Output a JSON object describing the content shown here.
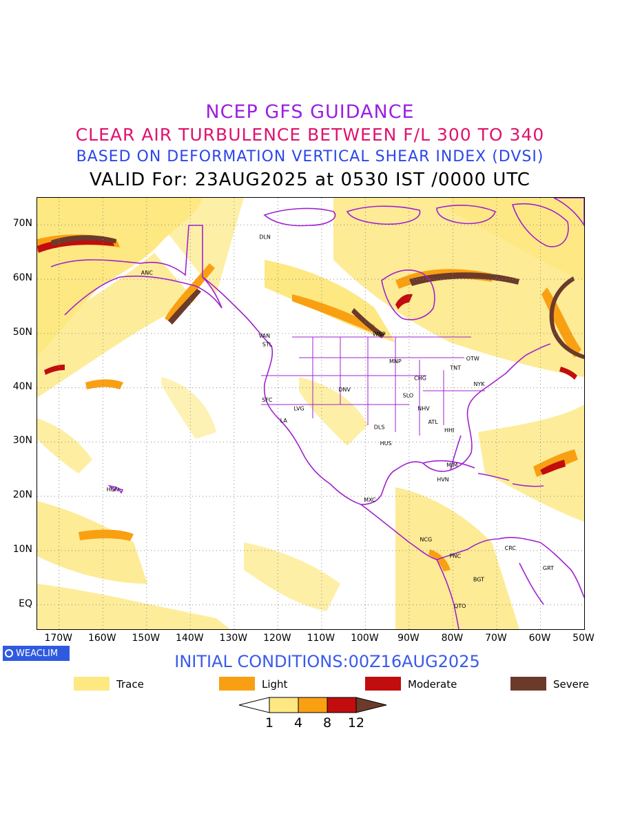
{
  "header": {
    "line1": "NCEP GFS GUIDANCE",
    "line2": "CLEAR AIR TURBULENCE BETWEEN F/L 300 TO 340",
    "line3": "BASED ON DEFORMATION VERTICAL SHEAR INDEX (DVSI)",
    "line4": "VALID For: 23AUG2025 at 0530 IST /0000 UTC"
  },
  "axes": {
    "lat_labels": [
      "70N",
      "60N",
      "50N",
      "40N",
      "30N",
      "20N",
      "10N",
      "EQ"
    ],
    "lon_labels": [
      "170W",
      "160W",
      "150W",
      "140W",
      "130W",
      "120W",
      "110W",
      "100W",
      "90W",
      "80W",
      "70W",
      "60W",
      "50W"
    ]
  },
  "cities": [
    {
      "name": "DLN",
      "lon": -123,
      "lat": 67.8
    },
    {
      "name": "ANC",
      "lon": -150,
      "lat": 61.2
    },
    {
      "name": "VAN",
      "lon": -123.1,
      "lat": 49.6
    },
    {
      "name": "STL",
      "lon": -122.3,
      "lat": 48.0
    },
    {
      "name": "WNP",
      "lon": -97.1,
      "lat": 49.9
    },
    {
      "name": "MNP",
      "lon": -93.3,
      "lat": 44.9
    },
    {
      "name": "TNT",
      "lon": -79.4,
      "lat": 43.7
    },
    {
      "name": "OTW",
      "lon": -75.7,
      "lat": 45.4
    },
    {
      "name": "CHG",
      "lon": -87.6,
      "lat": 41.8
    },
    {
      "name": "NYK",
      "lon": -74.0,
      "lat": 40.7
    },
    {
      "name": "DNV",
      "lon": -104.9,
      "lat": 39.7
    },
    {
      "name": "SLO",
      "lon": -90.2,
      "lat": 38.6
    },
    {
      "name": "SFC",
      "lon": -122.4,
      "lat": 37.8
    },
    {
      "name": "LVG",
      "lon": -115.1,
      "lat": 36.2
    },
    {
      "name": "NHV",
      "lon": -86.8,
      "lat": 36.2
    },
    {
      "name": "LA",
      "lon": -118.2,
      "lat": 34.0
    },
    {
      "name": "ATL",
      "lon": -84.4,
      "lat": 33.7
    },
    {
      "name": "DLS",
      "lon": -96.8,
      "lat": 32.8
    },
    {
      "name": "HHI",
      "lon": -80.7,
      "lat": 32.2
    },
    {
      "name": "HUS",
      "lon": -95.4,
      "lat": 29.8
    },
    {
      "name": "MIM",
      "lon": -80.2,
      "lat": 25.8
    },
    {
      "name": "HVN",
      "lon": -82.4,
      "lat": 23.1
    },
    {
      "name": "HON",
      "lon": -157.9,
      "lat": 21.3
    },
    {
      "name": "MXC",
      "lon": -99.1,
      "lat": 19.4
    },
    {
      "name": "NCG",
      "lon": -86.3,
      "lat": 12.1
    },
    {
      "name": "CRC",
      "lon": -66.9,
      "lat": 10.5
    },
    {
      "name": "PNC",
      "lon": -79.5,
      "lat": 9.0
    },
    {
      "name": "GRT",
      "lon": -58.2,
      "lat": 6.8
    },
    {
      "name": "BGT",
      "lon": -74.1,
      "lat": 4.7
    },
    {
      "name": "QTO",
      "lon": -78.5,
      "lat": -0.2
    }
  ],
  "badge": {
    "label": "WEACLIM"
  },
  "initial_conditions": "INITIAL CONDITIONS:00Z16AUG2025",
  "legend": [
    {
      "label": "Trace",
      "color": "#fde882"
    },
    {
      "label": "Light",
      "color": "#f9a012"
    },
    {
      "label": "Moderate",
      "color": "#c10d0d"
    },
    {
      "label": "Severe",
      "color": "#6b3a2b"
    }
  ],
  "colorbar": {
    "labels": [
      "1",
      "4",
      "8",
      "12"
    ],
    "colors": [
      "#ffffff",
      "#fde882",
      "#f9a012",
      "#c10d0d",
      "#6b3a2b"
    ]
  },
  "colors": {
    "coast": "#a020d0",
    "grid": "#888888"
  }
}
